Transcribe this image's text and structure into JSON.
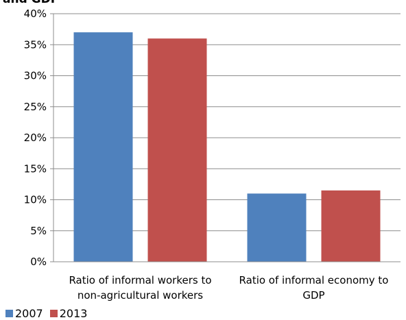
{
  "title_fragment": "and GDP",
  "chart_data": {
    "type": "bar",
    "categories": [
      [
        "Ratio of informal workers to",
        "non-agricultural workers"
      ],
      [
        "Ratio of informal economy to",
        "GDP"
      ]
    ],
    "series": [
      {
        "name": "2007",
        "color": "#4F81BD",
        "values": [
          37,
          11
        ]
      },
      {
        "name": "2013",
        "color": "#C0504D",
        "values": [
          36,
          11.5
        ]
      }
    ],
    "ylim": [
      0,
      40
    ],
    "yticks": [
      "0%",
      "5%",
      "10%",
      "15%",
      "20%",
      "25%",
      "30%",
      "35%",
      "40%"
    ],
    "ytick_values": [
      0,
      5,
      10,
      15,
      20,
      25,
      30,
      35,
      40
    ],
    "grid": true,
    "legend": "bottom-left"
  }
}
